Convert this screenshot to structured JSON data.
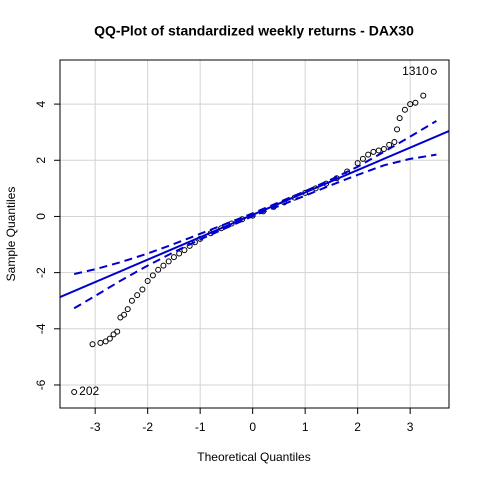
{
  "chart_data": {
    "type": "qq",
    "title": "QQ-Plot of standardized weekly returns - DAX30",
    "xlabel": "Theoretical Quantiles",
    "ylabel": "Sample Quantiles",
    "xlim": [
      -3.67,
      3.74
    ],
    "ylim": [
      -6.82,
      5.57
    ],
    "xticks": [
      -3,
      -2,
      -1,
      0,
      1,
      2,
      3
    ],
    "yticks": [
      -6,
      -4,
      -2,
      0,
      2,
      4
    ],
    "grid": true,
    "point_color": "#000000",
    "x": [
      -3.4,
      -3.05,
      -2.9,
      -2.8,
      -2.72,
      -2.65,
      -2.58,
      -2.52,
      -2.45,
      -2.38,
      -2.3,
      -2.2,
      -2.1,
      -2.0,
      -1.9,
      -1.8,
      -1.7,
      -1.6,
      -1.5,
      -1.4,
      -1.3,
      -1.2,
      -1.1,
      -1.0,
      -0.8,
      -0.6,
      -0.4,
      -0.2,
      0,
      0.2,
      0.4,
      0.6,
      0.8,
      1.0,
      1.2,
      1.4,
      1.6,
      1.8,
      2.0,
      2.1,
      2.2,
      2.3,
      2.4,
      2.5,
      2.6,
      2.7,
      2.75,
      2.8,
      2.9,
      3.0,
      3.1,
      3.25,
      3.45
    ],
    "y": [
      -6.25,
      -4.55,
      -4.5,
      -4.45,
      -4.35,
      -4.2,
      -4.1,
      -3.6,
      -3.5,
      -3.3,
      -3.0,
      -2.8,
      -2.6,
      -2.3,
      -2.1,
      -1.9,
      -1.75,
      -1.6,
      -1.45,
      -1.32,
      -1.2,
      -1.05,
      -0.92,
      -0.8,
      -0.6,
      -0.42,
      -0.25,
      -0.1,
      0.03,
      0.18,
      0.34,
      0.5,
      0.67,
      0.84,
      1.0,
      1.17,
      1.36,
      1.6,
      1.9,
      2.05,
      2.2,
      2.3,
      2.35,
      2.4,
      2.55,
      2.65,
      3.1,
      3.5,
      3.8,
      4.0,
      4.05,
      4.3,
      5.15
    ],
    "point_labels": [
      "202",
      null,
      null,
      null,
      null,
      null,
      null,
      null,
      null,
      null,
      null,
      null,
      null,
      null,
      null,
      null,
      null,
      null,
      null,
      null,
      null,
      null,
      null,
      null,
      null,
      null,
      null,
      null,
      null,
      null,
      null,
      null,
      null,
      null,
      null,
      null,
      null,
      null,
      null,
      null,
      null,
      null,
      null,
      null,
      null,
      null,
      null,
      null,
      null,
      null,
      null,
      null,
      "1310"
    ],
    "reference_line": {
      "color": "#0000cd",
      "x": [
        -3.67,
        3.74
      ],
      "y": [
        -2.87,
        3.04
      ]
    },
    "bands": [
      {
        "color": "#0000cd",
        "x": [
          -3.4,
          -3,
          -2.5,
          -2,
          -1.5,
          -1,
          0,
          1,
          1.5,
          2,
          2.5,
          3,
          3.5
        ],
        "y": [
          -2.05,
          -1.88,
          -1.62,
          -1.32,
          -0.98,
          -0.62,
          0.11,
          0.9,
          1.32,
          1.77,
          2.3,
          2.84,
          3.4
        ]
      },
      {
        "color": "#0000cd",
        "x": [
          -3.4,
          -3,
          -2.5,
          -2,
          -1.5,
          -1,
          0,
          1,
          1.5,
          2,
          2.5,
          3,
          3.5
        ],
        "y": [
          -3.27,
          -2.83,
          -2.27,
          -1.75,
          -1.27,
          -0.82,
          0.01,
          0.74,
          1.12,
          1.48,
          1.82,
          2.05,
          2.2
        ]
      }
    ]
  }
}
